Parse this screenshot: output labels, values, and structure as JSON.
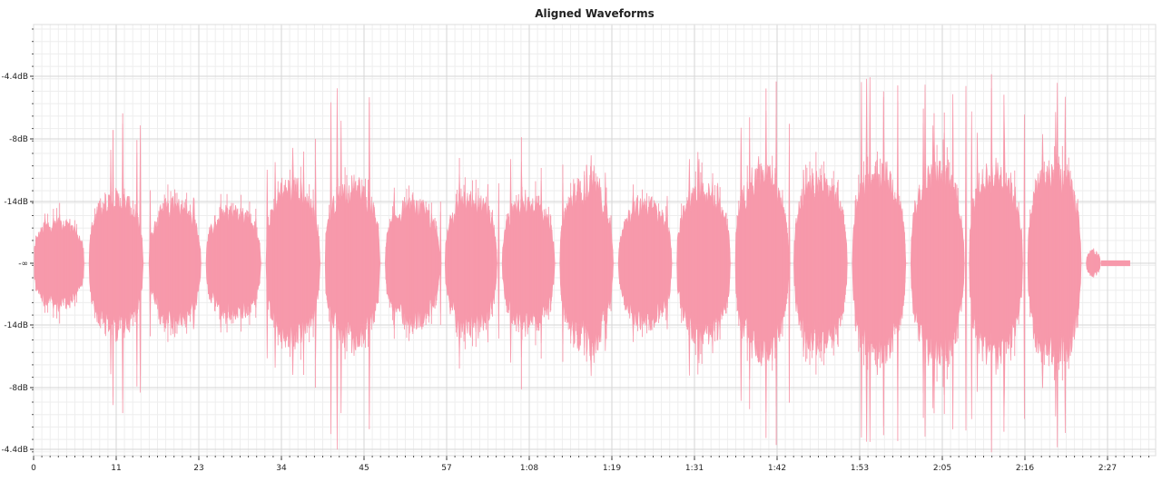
{
  "chart_data": {
    "type": "area",
    "title": "Aligned Waveforms",
    "xlabel": "",
    "ylabel": "",
    "x_ticks": [
      "0",
      "11",
      "23",
      "34",
      "45",
      "57",
      "1:08",
      "1:19",
      "1:31",
      "1:42",
      "1:53",
      "2:05",
      "2:16",
      "2:27"
    ],
    "y_ticks": [
      "-4.4dB",
      "-8dB",
      "-14dB",
      "-∞",
      "-14dB",
      "-8dB",
      "-4.4dB"
    ],
    "grid": true,
    "color": "#F799AB",
    "series": [
      {
        "segments": [
          {
            "start": 0,
            "end": 7.2,
            "amp": 0.22,
            "peak": 0.25
          },
          {
            "start": 7.6,
            "end": 15.3,
            "amp": 0.34,
            "peak": 0.75
          },
          {
            "start": 15.8,
            "end": 23.2,
            "amp": 0.3,
            "peak": 0.36
          },
          {
            "start": 23.6,
            "end": 31.4,
            "amp": 0.27,
            "peak": 0.32
          },
          {
            "start": 31.8,
            "end": 39.5,
            "amp": 0.4,
            "peak": 0.62
          },
          {
            "start": 39.9,
            "end": 47.7,
            "amp": 0.4,
            "peak": 0.94
          },
          {
            "start": 48.1,
            "end": 55.9,
            "amp": 0.3,
            "peak": 0.38
          },
          {
            "start": 56.3,
            "end": 63.7,
            "amp": 0.33,
            "peak": 0.48
          },
          {
            "start": 64.1,
            "end": 71.6,
            "amp": 0.32,
            "peak": 0.56
          },
          {
            "start": 72.0,
            "end": 79.6,
            "amp": 0.4,
            "peak": 0.58
          },
          {
            "start": 80.0,
            "end": 87.6,
            "amp": 0.31,
            "peak": 0.38
          },
          {
            "start": 88.0,
            "end": 95.6,
            "amp": 0.37,
            "peak": 0.56
          },
          {
            "start": 96.0,
            "end": 103.6,
            "amp": 0.46,
            "peak": 0.82
          },
          {
            "start": 104.0,
            "end": 111.6,
            "amp": 0.42,
            "peak": 0.5
          },
          {
            "start": 112.0,
            "end": 119.6,
            "amp": 0.48,
            "peak": 1.0
          },
          {
            "start": 120.0,
            "end": 127.6,
            "amp": 0.47,
            "peak": 0.96
          },
          {
            "start": 128.0,
            "end": 135.6,
            "amp": 0.48,
            "peak": 0.94
          },
          {
            "start": 136.0,
            "end": 143.6,
            "amp": 0.48,
            "peak": 0.97
          },
          {
            "start": 144.0,
            "end": 146.0,
            "amp": 0.06,
            "peak": 0.08
          }
        ],
        "tail": {
          "start": 146.0,
          "end": 150.0,
          "amp": 0.015
        }
      }
    ]
  }
}
